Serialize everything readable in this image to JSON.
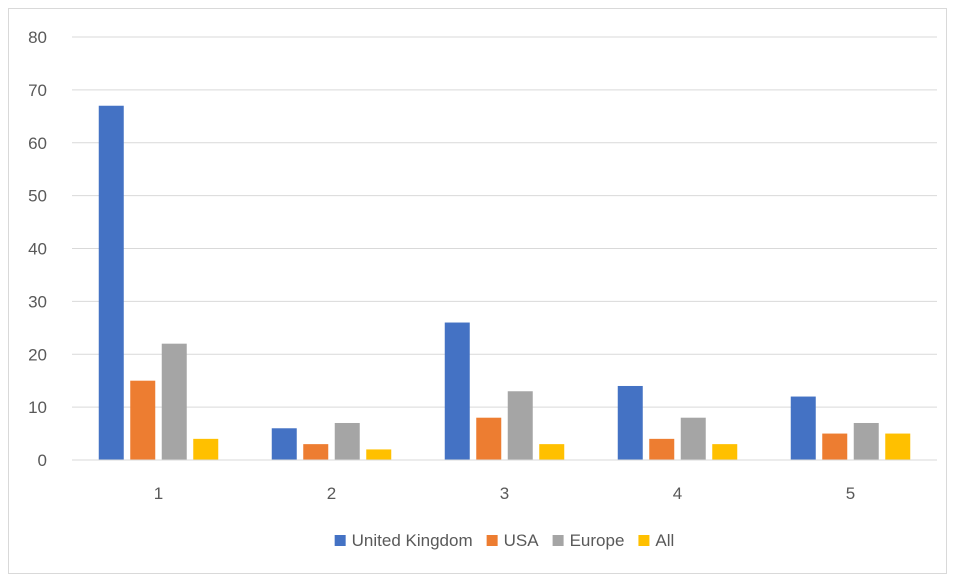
{
  "chart_data": {
    "type": "bar",
    "title": "",
    "xlabel": "",
    "ylabel": "",
    "categories": [
      "1",
      "2",
      "3",
      "4",
      "5"
    ],
    "ylim": [
      0,
      80
    ],
    "yticks": [
      0,
      10,
      20,
      30,
      40,
      50,
      60,
      70,
      80
    ],
    "grid": true,
    "legend_position": "bottom",
    "series": [
      {
        "name": "United Kingdom",
        "color": "#4472C4",
        "values": [
          67,
          6,
          26,
          14,
          12
        ]
      },
      {
        "name": "USA",
        "color": "#ED7D31",
        "values": [
          15,
          3,
          8,
          4,
          5
        ]
      },
      {
        "name": "Europe",
        "color": "#A5A5A5",
        "values": [
          22,
          7,
          13,
          8,
          7
        ]
      },
      {
        "name": "All",
        "color": "#FFC000",
        "values": [
          4,
          2,
          3,
          3,
          5
        ]
      }
    ]
  }
}
